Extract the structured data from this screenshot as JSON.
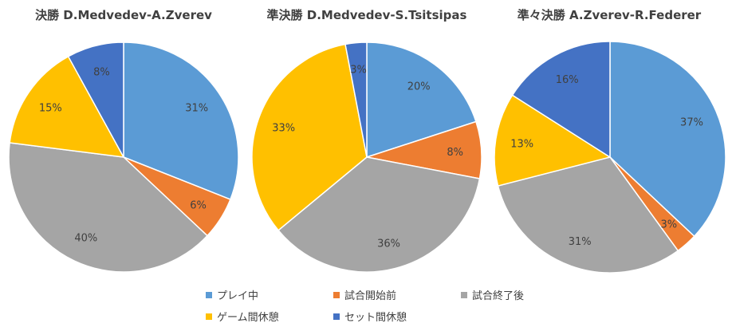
{
  "colors": {
    "play": "#5B9BD5",
    "pre_match": "#ED7D31",
    "post_match": "#A5A5A5",
    "game_break": "#FFC000",
    "set_break": "#4472C4"
  },
  "legend": [
    {
      "key": "play",
      "label": "プレイ中"
    },
    {
      "key": "pre_match",
      "label": "試合開始前"
    },
    {
      "key": "post_match",
      "label": "試合終了後"
    },
    {
      "key": "game_break",
      "label": "ゲーム間休憩"
    },
    {
      "key": "set_break",
      "label": "セット間休憩"
    }
  ],
  "chart_data": [
    {
      "type": "pie",
      "title": "決勝 D.Medvedev-A.Zverev",
      "categories": [
        "プレイ中",
        "試合開始前",
        "試合終了後",
        "ゲーム間休憩",
        "セット間休憩"
      ],
      "values": [
        31,
        6,
        40,
        15,
        8
      ],
      "labels": [
        "31%",
        "6%",
        "40%",
        "15%",
        "8%"
      ]
    },
    {
      "type": "pie",
      "title": "準決勝 D.Medvedev-S.Tsitsipas",
      "categories": [
        "プレイ中",
        "試合開始前",
        "試合終了後",
        "ゲーム間休憩",
        "セット間休憩"
      ],
      "values": [
        20,
        8,
        36,
        33,
        3
      ],
      "labels": [
        "20%",
        "8%",
        "36%",
        "33%",
        "3%"
      ]
    },
    {
      "type": "pie",
      "title": "準々決勝 A.Zverev-R.Federer",
      "categories": [
        "プレイ中",
        "試合開始前",
        "試合終了後",
        "ゲーム間休憩",
        "セット間休憩"
      ],
      "values": [
        37,
        3,
        31,
        13,
        16
      ],
      "labels": [
        "37%",
        "3%",
        "31%",
        "13%",
        "16%"
      ]
    }
  ]
}
